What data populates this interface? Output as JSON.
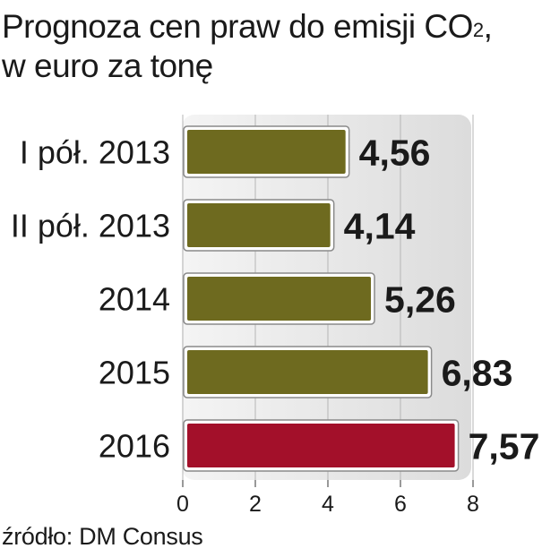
{
  "chart_data": {
    "type": "bar",
    "orientation": "horizontal",
    "title": "Prognoza cen praw do emisji CO",
    "title_superscript": "2",
    "title_suffix": ",",
    "subtitle": "w euro za tonę",
    "categories": [
      "I pół. 2013",
      "II pół. 2013",
      "2014",
      "2015",
      "2016"
    ],
    "values": [
      4.56,
      4.14,
      5.26,
      6.83,
      7.57
    ],
    "value_labels": [
      "4,56",
      "4,14",
      "5,26",
      "6,83",
      "7,57"
    ],
    "bar_colors": [
      "#6e6a1f",
      "#6e6a1f",
      "#6e6a1f",
      "#6e6a1f",
      "#a3102a"
    ],
    "xlim": [
      0,
      8
    ],
    "xticks": [
      0,
      2,
      4,
      6,
      8
    ],
    "grid": true,
    "source": "źródło: DM Consus"
  }
}
